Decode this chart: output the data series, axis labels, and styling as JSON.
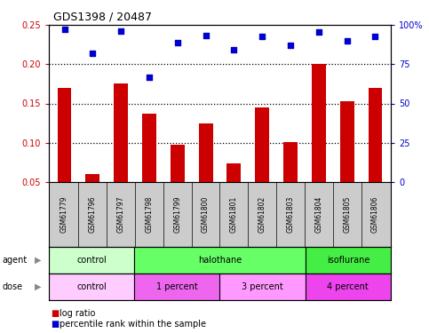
{
  "title": "GDS1398 / 20487",
  "samples": [
    "GSM61779",
    "GSM61796",
    "GSM61797",
    "GSM61798",
    "GSM61799",
    "GSM61800",
    "GSM61801",
    "GSM61802",
    "GSM61803",
    "GSM61804",
    "GSM61805",
    "GSM61806"
  ],
  "log_ratio": [
    0.17,
    0.06,
    0.175,
    0.137,
    0.098,
    0.125,
    0.074,
    0.145,
    0.101,
    0.2,
    0.153,
    0.17
  ],
  "percentile_rank_pct": [
    97.0,
    82.0,
    96.0,
    66.8,
    88.8,
    93.2,
    84.0,
    92.8,
    86.8,
    95.2,
    89.6,
    92.8
  ],
  "bar_color": "#cc0000",
  "dot_color": "#0000cc",
  "ylim_left": [
    0.05,
    0.25
  ],
  "ylim_right": [
    0.0,
    100.0
  ],
  "yticks_left": [
    0.05,
    0.1,
    0.15,
    0.2,
    0.25
  ],
  "ytick_labels_left": [
    "0.05",
    "0.10",
    "0.15",
    "0.20",
    "0.25"
  ],
  "yticks_right": [
    0.0,
    25.0,
    50.0,
    75.0,
    100.0
  ],
  "ytick_labels_right": [
    "0",
    "25",
    "50",
    "75",
    "100%"
  ],
  "grid_lines": [
    0.1,
    0.15,
    0.2
  ],
  "agent_groups": [
    {
      "label": "control",
      "start": 0,
      "end": 3,
      "color": "#ccffcc"
    },
    {
      "label": "halothane",
      "start": 3,
      "end": 9,
      "color": "#66ff66"
    },
    {
      "label": "isoflurane",
      "start": 9,
      "end": 12,
      "color": "#44ee44"
    }
  ],
  "dose_groups": [
    {
      "label": "control",
      "start": 0,
      "end": 3,
      "color": "#ffccff"
    },
    {
      "label": "1 percent",
      "start": 3,
      "end": 6,
      "color": "#ee66ee"
    },
    {
      "label": "3 percent",
      "start": 6,
      "end": 9,
      "color": "#ff99ff"
    },
    {
      "label": "4 percent",
      "start": 9,
      "end": 12,
      "color": "#ee44ee"
    }
  ],
  "legend_bar_label": "log ratio",
  "legend_dot_label": "percentile rank within the sample",
  "label_agent": "agent",
  "label_dose": "dose",
  "bg_color": "#ffffff",
  "tick_color_left": "#cc0000",
  "tick_color_right": "#0000cc",
  "sample_bg_color": "#cccccc",
  "bar_width": 0.5
}
